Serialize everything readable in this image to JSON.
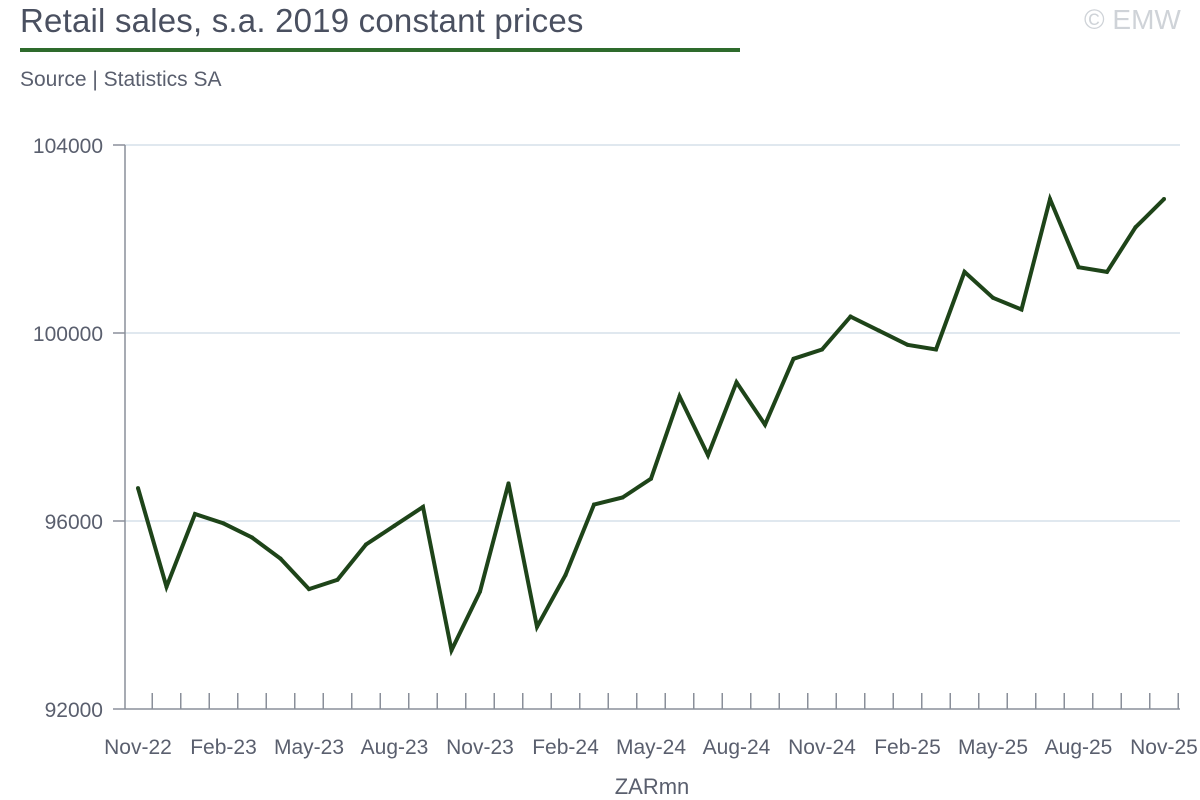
{
  "header": {
    "title": "Retail sales, s.a. 2019 constant prices",
    "source": "Source | Statistics SA",
    "copyright": "© EMW"
  },
  "colors": {
    "line": "#1e4419",
    "accent_rule": "#2e6b2c",
    "grid": "#d6e1ea",
    "axis": "#8a8f9a",
    "text": "#5a5f6e"
  },
  "chart_data": {
    "type": "line",
    "title": "Retail sales, s.a. 2019 constant prices",
    "xlabel": "ZARmn",
    "ylabel": "",
    "ylim": [
      92000,
      104000
    ],
    "yticks": [
      "104000",
      "100000",
      "96000",
      "92000"
    ],
    "ytick_values": [
      104000,
      100000,
      96000,
      92000
    ],
    "grid": true,
    "x": [
      "Nov-22",
      "Dec-22",
      "Jan-23",
      "Feb-23",
      "Mar-23",
      "Apr-23",
      "May-23",
      "Jun-23",
      "Jul-23",
      "Aug-23",
      "Sep-23",
      "Oct-23",
      "Nov-23",
      "Dec-23",
      "Jan-24",
      "Feb-24",
      "Mar-24",
      "Apr-24",
      "May-24",
      "Jun-24",
      "Jul-24",
      "Aug-24",
      "Sep-24",
      "Oct-24",
      "Nov-24",
      "Dec-24",
      "Jan-25",
      "Feb-25",
      "Mar-25",
      "Apr-25",
      "May-25",
      "Jun-25",
      "Jul-25",
      "Aug-25",
      "Sep-25",
      "Oct-25",
      "Nov-25"
    ],
    "xtick_labels": [
      "Nov-22",
      "Feb-23",
      "May-23",
      "Aug-23",
      "Nov-23",
      "Feb-24",
      "May-24",
      "Aug-24",
      "Nov-24",
      "Feb-25",
      "May-25",
      "Aug-25",
      "Nov-25"
    ],
    "series": [
      {
        "values": [
          96700,
          94600,
          96150,
          95950,
          95650,
          95200,
          94550,
          94750,
          95500,
          95900,
          96300,
          93250,
          94500,
          96800,
          93750,
          94850,
          96350,
          96500,
          96900,
          98650,
          97400,
          98950,
          98050,
          99450,
          99650,
          100350,
          100050,
          99750,
          99650,
          101300,
          100750,
          100500,
          102850,
          101400,
          101300,
          102250,
          102850
        ]
      }
    ]
  }
}
